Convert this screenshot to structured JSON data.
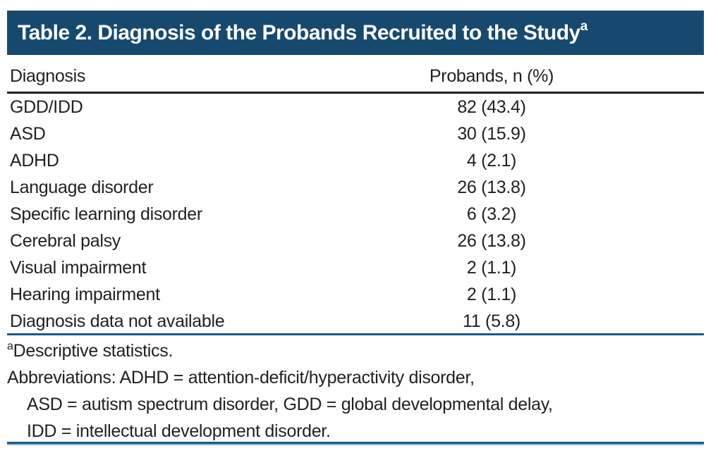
{
  "table": {
    "title": "Table 2. Diagnosis of the Probands Recruited to the Study",
    "title_superscript": "a",
    "columns": [
      "Diagnosis",
      "Probands, n (%)"
    ],
    "rows": [
      {
        "diagnosis": "GDD/IDD",
        "value": "82 (43.4)"
      },
      {
        "diagnosis": "ASD",
        "value": "30 (15.9)"
      },
      {
        "diagnosis": "ADHD",
        "value": "4 (2.1)"
      },
      {
        "diagnosis": "Language disorder",
        "value": "26 (13.8)"
      },
      {
        "diagnosis": "Specific learning disorder",
        "value": "6 (3.2)"
      },
      {
        "diagnosis": "Cerebral palsy",
        "value": "26 (13.8)"
      },
      {
        "diagnosis": "Visual impairment",
        "value": "2 (1.1)"
      },
      {
        "diagnosis": "Hearing impairment",
        "value": "2 (1.1)"
      },
      {
        "diagnosis": "Diagnosis data not available",
        "value": "11 (5.8)"
      }
    ]
  },
  "footnotes": {
    "marker": "a",
    "note": "Descriptive statistics.",
    "abbreviations_line1": "Abbreviations: ADHD = attention-deficit/hyperactivity disorder,",
    "abbreviations_line2": "ASD = autism spectrum disorder, GDD = global developmental delay,",
    "abbreviations_line3": "IDD = intellectual development disorder."
  },
  "colors": {
    "title_bar_background": "#17496f",
    "title_text": "#ffffff",
    "body_text": "#231f20",
    "header_rule": "#231f20",
    "blue_rule": "#1a5a88",
    "bottom_rule_light": "#8fb8cd"
  }
}
